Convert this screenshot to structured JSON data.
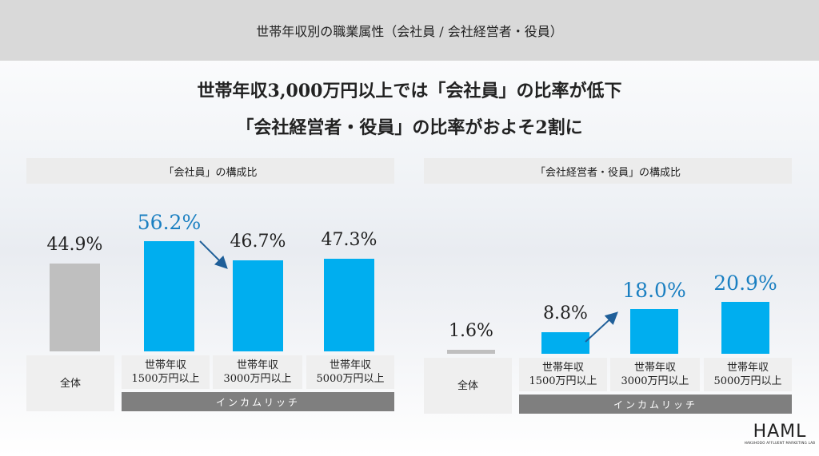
{
  "header": {
    "title": "世帯年収別の職業属性（会社員 / 会社経営者・役員）"
  },
  "headline": {
    "line1": "世帯年収3,000万円以上では「会社員」の比率が低下",
    "line2": "「会社経営者・役員」の比率がおよそ2割に"
  },
  "colors": {
    "bar_overall": "#bfbfbf",
    "bar_income": "#00aeef",
    "highlight_label": "#1a7fc1",
    "band": "#7f7f7f"
  },
  "group_label": "インカムリッチ",
  "logo": {
    "main": "HAML",
    "sub": "HAKUHODO AFFLUENT MARKETING LAB"
  },
  "chart_data": [
    {
      "type": "bar",
      "title": "「会社員」の構成比",
      "categories": [
        "全体",
        "世帯年収\n1500万円以上",
        "世帯年収\n3000万円以上",
        "世帯年収\n5000万円以上"
      ],
      "values": [
        44.9,
        56.2,
        46.7,
        47.3
      ],
      "labels": [
        "44.9%",
        "56.2%",
        "46.7%",
        "47.3%"
      ],
      "highlight": [
        false,
        true,
        false,
        false
      ],
      "arrow": "from 1500万円以上 to 3000万円以上 (decrease)"
    },
    {
      "type": "bar",
      "title": "「会社経営者・役員」の構成比",
      "categories": [
        "全体",
        "世帯年収\n1500万円以上",
        "世帯年収\n3000万円以上",
        "世帯年収\n5000万円以上"
      ],
      "values": [
        1.6,
        8.8,
        18.0,
        20.9
      ],
      "labels": [
        "1.6%",
        "8.8%",
        "18.0%",
        "20.9%"
      ],
      "highlight": [
        false,
        false,
        true,
        true
      ],
      "arrow": "from 1500万円以上 to 3000万円以上 (increase)"
    }
  ]
}
